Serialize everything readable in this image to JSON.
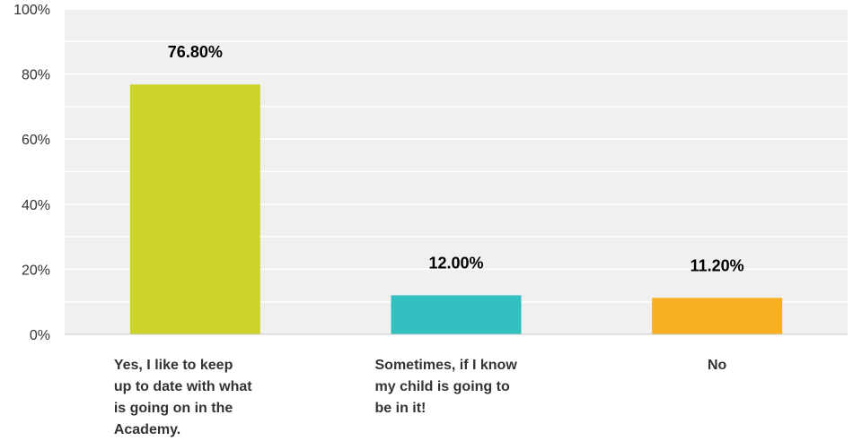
{
  "chart_data": {
    "type": "bar",
    "categories": [
      "Yes, I like to keep up to date with what is going on in the Academy.",
      "Sometimes, if I know my child is going to be in it!",
      "No"
    ],
    "category_lines": [
      [
        "Yes, I like to keep",
        "up to date with what",
        "is going on in the",
        "Academy."
      ],
      [
        "Sometimes, if I know",
        "my child is going to",
        "be in it!"
      ],
      [
        "No"
      ]
    ],
    "values": [
      76.8,
      12.0,
      11.2
    ],
    "data_labels": [
      "76.80%",
      "12.00%",
      "11.20%"
    ],
    "colors": [
      "#ced329",
      "#34bfc1",
      "#f7b022"
    ],
    "ylim": [
      0,
      100
    ],
    "yticks": [
      0,
      20,
      40,
      60,
      80,
      100
    ],
    "ytick_labels": [
      "0%",
      "20%",
      "40%",
      "60%",
      "80%",
      "100%"
    ],
    "grid": true,
    "title": "",
    "xlabel": "",
    "ylabel": ""
  }
}
